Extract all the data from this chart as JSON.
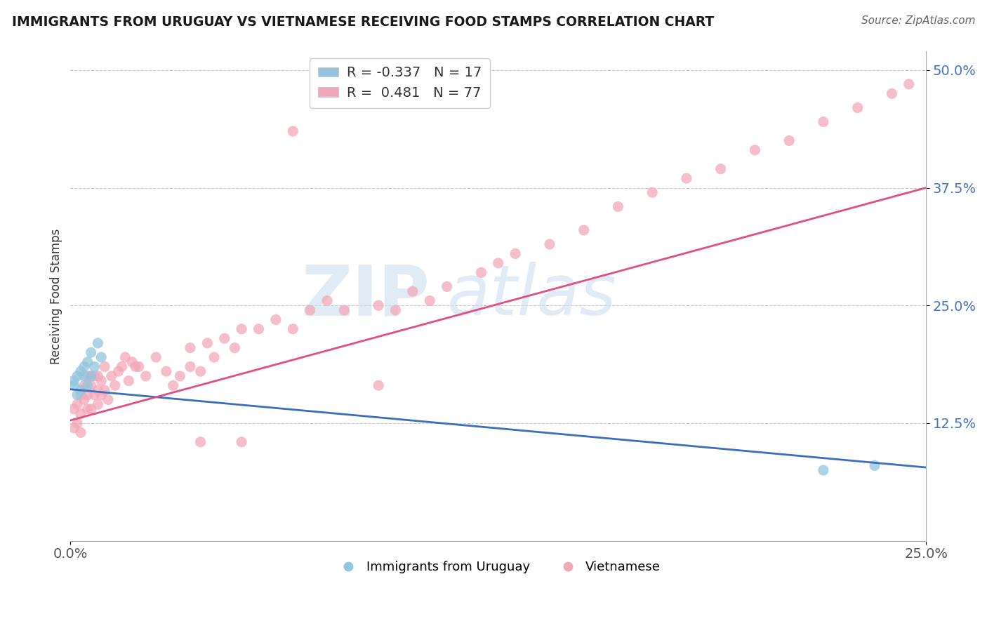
{
  "title": "IMMIGRANTS FROM URUGUAY VS VIETNAMESE RECEIVING FOOD STAMPS CORRELATION CHART",
  "source": "Source: ZipAtlas.com",
  "ylabel": "Receiving Food Stamps",
  "xlim": [
    0.0,
    0.25
  ],
  "ylim": [
    0.0,
    0.52
  ],
  "yticks": [
    0.125,
    0.25,
    0.375,
    0.5
  ],
  "ytick_labels": [
    "12.5%",
    "25.0%",
    "37.5%",
    "50.0%"
  ],
  "xticks": [
    0.0,
    0.25
  ],
  "xtick_labels": [
    "0.0%",
    "25.0%"
  ],
  "watermark_zip": "ZIP",
  "watermark_atlas": "atlas",
  "legend_blue_label": "R = -0.337   N = 17",
  "legend_pink_label": "R =  0.481   N = 77",
  "blue_color": "#92c5de",
  "pink_color": "#f4a7b9",
  "blue_line_color": "#3b6fba",
  "pink_line_color": "#e05080",
  "blue_line_x0": 0.0,
  "blue_line_y0": 0.161,
  "blue_line_x1": 0.25,
  "blue_line_y1": 0.078,
  "pink_line_x0": 0.0,
  "pink_line_y0": 0.128,
  "pink_line_x1": 0.25,
  "pink_line_y1": 0.375,
  "background_color": "#ffffff",
  "grid_color": "#cccccc",
  "blue_scatter_x": [
    0.001,
    0.001,
    0.002,
    0.002,
    0.003,
    0.003,
    0.004,
    0.004,
    0.005,
    0.005,
    0.006,
    0.006,
    0.007,
    0.008,
    0.009,
    0.22,
    0.235
  ],
  "blue_scatter_y": [
    0.165,
    0.17,
    0.155,
    0.175,
    0.16,
    0.18,
    0.185,
    0.175,
    0.19,
    0.165,
    0.2,
    0.175,
    0.185,
    0.21,
    0.195,
    0.075,
    0.08
  ],
  "pink_scatter_x": [
    0.001,
    0.001,
    0.002,
    0.002,
    0.003,
    0.003,
    0.003,
    0.004,
    0.004,
    0.005,
    0.005,
    0.005,
    0.006,
    0.006,
    0.006,
    0.007,
    0.007,
    0.008,
    0.008,
    0.008,
    0.009,
    0.009,
    0.01,
    0.01,
    0.011,
    0.012,
    0.013,
    0.014,
    0.015,
    0.016,
    0.017,
    0.018,
    0.019,
    0.02,
    0.022,
    0.025,
    0.028,
    0.03,
    0.032,
    0.035,
    0.035,
    0.038,
    0.04,
    0.042,
    0.045,
    0.048,
    0.05,
    0.055,
    0.06,
    0.065,
    0.07,
    0.075,
    0.08,
    0.09,
    0.095,
    0.1,
    0.105,
    0.11,
    0.12,
    0.125,
    0.13,
    0.14,
    0.15,
    0.16,
    0.17,
    0.18,
    0.19,
    0.2,
    0.21,
    0.22,
    0.23,
    0.24,
    0.245,
    0.038,
    0.05,
    0.065,
    0.09
  ],
  "pink_scatter_y": [
    0.14,
    0.12,
    0.145,
    0.125,
    0.155,
    0.135,
    0.115,
    0.15,
    0.165,
    0.155,
    0.175,
    0.14,
    0.165,
    0.14,
    0.175,
    0.155,
    0.175,
    0.16,
    0.175,
    0.145,
    0.17,
    0.155,
    0.185,
    0.16,
    0.15,
    0.175,
    0.165,
    0.18,
    0.185,
    0.195,
    0.17,
    0.19,
    0.185,
    0.185,
    0.175,
    0.195,
    0.18,
    0.165,
    0.175,
    0.205,
    0.185,
    0.18,
    0.21,
    0.195,
    0.215,
    0.205,
    0.225,
    0.225,
    0.235,
    0.225,
    0.245,
    0.255,
    0.245,
    0.25,
    0.245,
    0.265,
    0.255,
    0.27,
    0.285,
    0.295,
    0.305,
    0.315,
    0.33,
    0.355,
    0.37,
    0.385,
    0.395,
    0.415,
    0.425,
    0.445,
    0.46,
    0.475,
    0.485,
    0.105,
    0.105,
    0.435,
    0.165
  ]
}
